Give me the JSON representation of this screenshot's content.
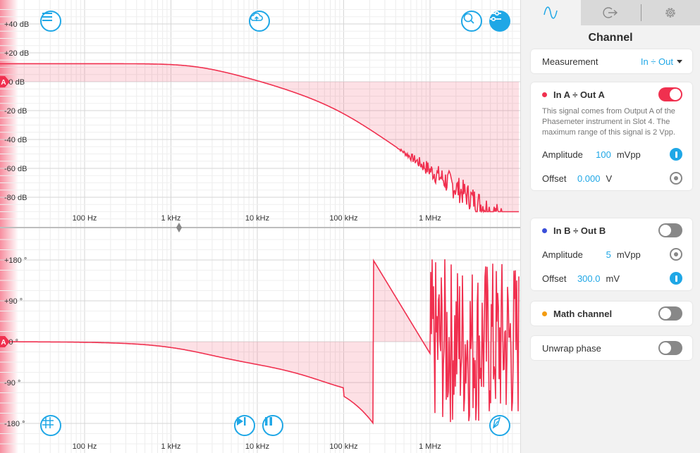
{
  "plot": {
    "mag_labels": [
      "+40 dB",
      "+20 dB",
      "+0 dB",
      "-20 dB",
      "-40 dB",
      "-60 dB",
      "-80 dB"
    ],
    "phase_labels": [
      "+180 °",
      "+90 °",
      "+0 °",
      "-90 °",
      "-180 °"
    ],
    "freq_labels": [
      "100 Hz",
      "1 kHz",
      "10 kHz",
      "100 kHz",
      "1 MHz"
    ],
    "channel_marker": "A",
    "colors": {
      "trace": "#f0304f",
      "fill": "rgba(240,48,79,0.15)",
      "accent": "#1fa7e6"
    }
  },
  "toolbar": {
    "menu_icon": "menu-icon",
    "upload_icon": "cloud-upload-icon",
    "autoscale_icon": "autoscale-icon",
    "settings_icon": "sliders-icon",
    "grid_icon": "grid-icon",
    "step_icon": "skip-forward-icon",
    "pause_icon": "pause-icon",
    "cursor_icon": "cursor-icon"
  },
  "panel": {
    "tabs": [
      {
        "icon": "waveform-icon",
        "active": true
      },
      {
        "icon": "output-icon",
        "active": false
      },
      {
        "icon": "gear-icon",
        "active": false
      }
    ],
    "title": "Channel",
    "measurement": {
      "label": "Measurement",
      "value": "In ÷ Out"
    },
    "channel_a": {
      "title": "In A ÷ Out A",
      "color": "#f0304f",
      "enabled": true,
      "description": "This signal comes from Output A of the Phasemeter instrument in Slot 4. The maximum range of this signal is 2 Vpp.",
      "amplitude": {
        "label": "Amplitude",
        "value": "100",
        "unit": "mVpp"
      },
      "offset": {
        "label": "Offset",
        "value": "0.000",
        "unit": "V"
      }
    },
    "channel_b": {
      "title": "In B ÷ Out B",
      "color": "#3b4fd9",
      "enabled": false,
      "amplitude": {
        "label": "Amplitude",
        "value": "5",
        "unit": "mVpp"
      },
      "offset": {
        "label": "Offset",
        "value": "300.0",
        "unit": "mV"
      }
    },
    "math_channel": {
      "title": "Math channel",
      "color": "#f39c12",
      "enabled": false
    },
    "unwrap_phase": {
      "label": "Unwrap phase",
      "enabled": false
    }
  }
}
